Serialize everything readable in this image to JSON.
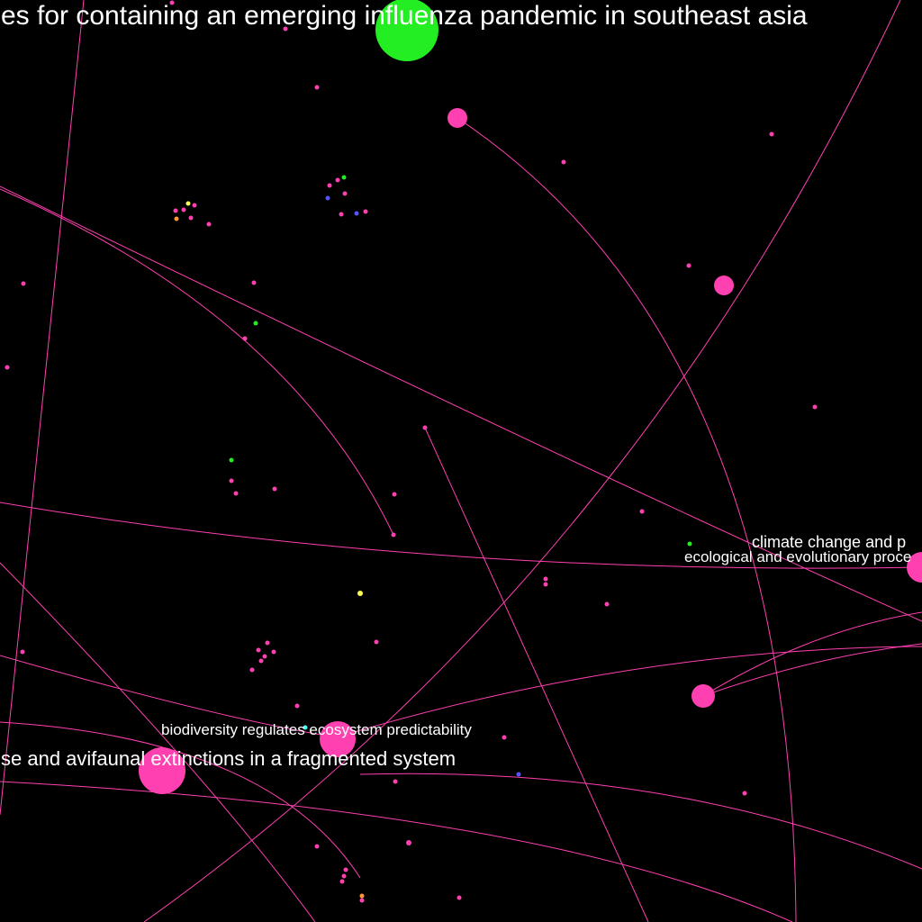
{
  "labels": {
    "influenza": "es for containing an emerging influenza pandemic in southeast asia",
    "avifaunal": "se and avifaunal extinctions in a fragmented system",
    "biodiversity": "biodiversity regulates ecosystem predictability",
    "climate": "climate change and p",
    "ecological": "ecological and evolutionary proce"
  },
  "colors": {
    "background": "#000000",
    "edge": "#ff40b0",
    "node_pink": "#ff40b0",
    "node_green": "#22ee22",
    "node_blue": "#5555ff",
    "node_yellow": "#ffff55",
    "node_orange": "#ff9933",
    "node_cyan": "#55ffff",
    "label": "#ffffff"
  }
}
